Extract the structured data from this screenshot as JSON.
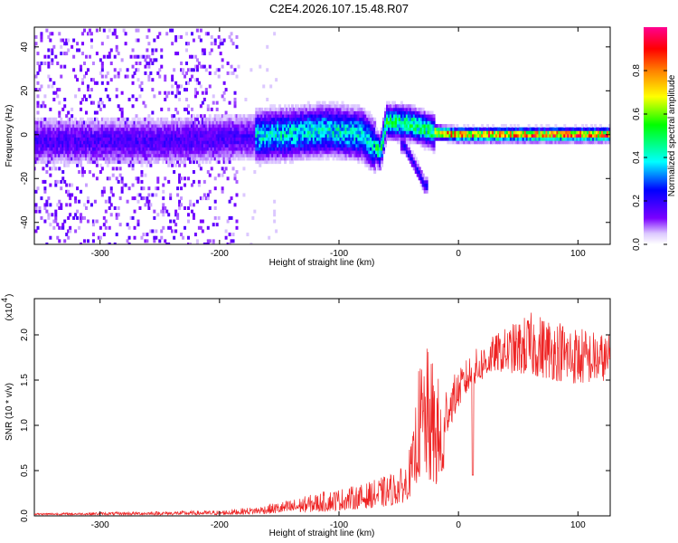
{
  "title": "C2E4.2026.107.15.48.R07",
  "chart_data": [
    {
      "type": "heatmap",
      "xlabel": "Height of straight line (km)",
      "ylabel": "Frequency (Hz)",
      "xlim": [
        -355,
        127
      ],
      "ylim": [
        -50,
        49
      ],
      "xticks": [
        -300,
        -200,
        -100,
        0,
        100
      ],
      "yticks": [
        -40,
        -20,
        0,
        20,
        40
      ],
      "colorbar": {
        "label": "Normalized spectral amplitude",
        "range": [
          0,
          1
        ],
        "ticks": [
          0.0,
          0.2,
          0.4,
          0.6,
          0.8
        ],
        "colormap": [
          "#ffffff",
          "#7b00ff",
          "#0000ff",
          "#00ffff",
          "#00ff00",
          "#ffff00",
          "#ff8000",
          "#ff0000",
          "#ff00aa"
        ]
      },
      "ridge": {
        "description_points": [
          [
            -300,
            -3
          ],
          [
            -250,
            -3
          ],
          [
            -200,
            -2
          ],
          [
            -150,
            0
          ],
          [
            -110,
            2
          ],
          [
            -80,
            0
          ],
          [
            -65,
            -8
          ],
          [
            -60,
            6
          ],
          [
            -40,
            5
          ],
          [
            -20,
            1
          ],
          [
            0,
            0
          ],
          [
            50,
            0
          ],
          [
            127,
            0
          ]
        ],
        "branch_points": [
          [
            -45,
            -5
          ],
          [
            -35,
            -15
          ],
          [
            -28,
            -23
          ]
        ],
        "peak_amplitude_region_x": [
          -20,
          127
        ]
      }
    },
    {
      "type": "line",
      "xlabel": "Height of straight line (km)",
      "ylabel": "SNR (10 * v/v)",
      "yscale_label": "(x10",
      "yscale_exp": "4",
      "xlim": [
        -355,
        127
      ],
      "ylim": [
        0,
        2.4
      ],
      "xticks": [
        -300,
        -200,
        -100,
        0,
        100
      ],
      "yticks": [
        0.0,
        0.5,
        1.0,
        1.5,
        2.0
      ],
      "series": [
        {
          "color": "#ee2222",
          "envelope": [
            [
              -355,
              0.01,
              0.03
            ],
            [
              -300,
              0.01,
              0.04
            ],
            [
              -250,
              0.01,
              0.05
            ],
            [
              -200,
              0.01,
              0.06
            ],
            [
              -170,
              0.02,
              0.1
            ],
            [
              -140,
              0.03,
              0.18
            ],
            [
              -110,
              0.05,
              0.28
            ],
            [
              -80,
              0.08,
              0.35
            ],
            [
              -60,
              0.1,
              0.45
            ],
            [
              -45,
              0.15,
              0.55
            ],
            [
              -38,
              0.25,
              0.9
            ],
            [
              -34,
              0.4,
              1.6
            ],
            [
              -28,
              0.4,
              1.9
            ],
            [
              -20,
              0.3,
              1.7
            ],
            [
              -12,
              0.4,
              1.3
            ],
            [
              -10,
              0.9,
              1.5
            ],
            [
              0,
              1.2,
              1.6
            ],
            [
              10,
              1.4,
              1.8
            ],
            [
              30,
              1.6,
              2.0
            ],
            [
              60,
              1.55,
              2.25
            ],
            [
              80,
              1.5,
              2.2
            ],
            [
              100,
              1.45,
              2.1
            ],
            [
              127,
              1.5,
              2.0
            ]
          ],
          "dips": [
            [
              -14,
              0.5
            ],
            [
              12,
              0.45
            ]
          ]
        }
      ]
    }
  ]
}
